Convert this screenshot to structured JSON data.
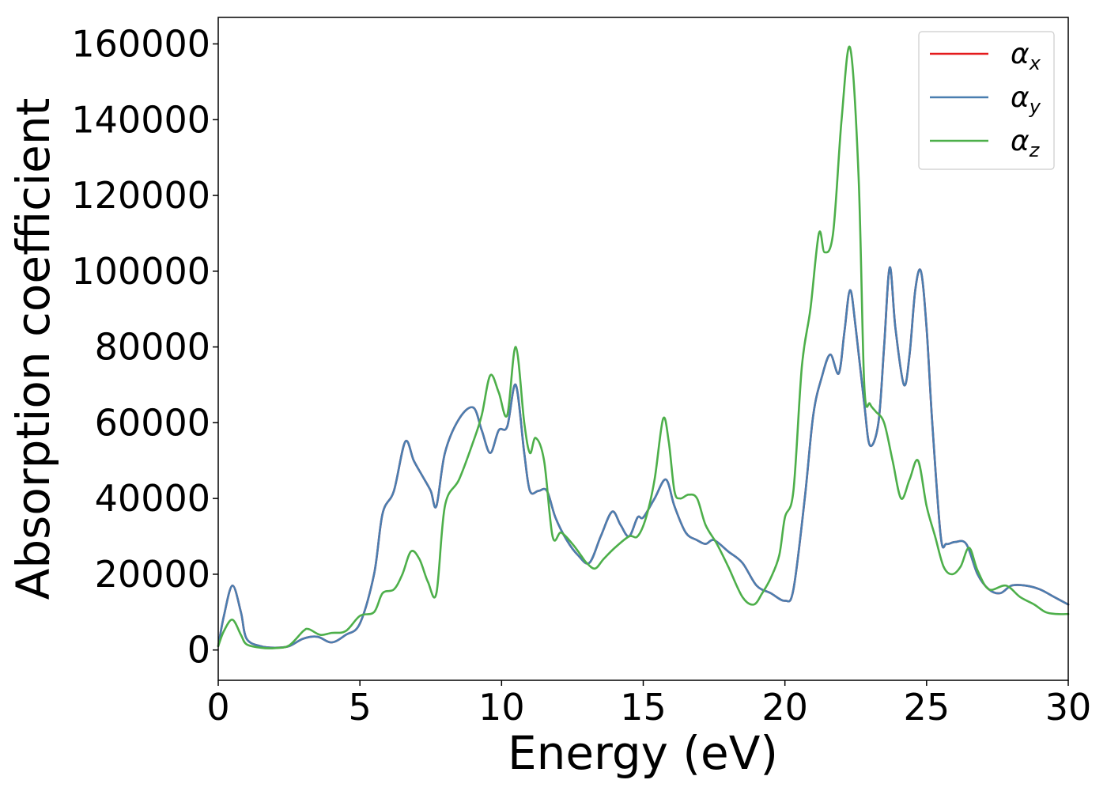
{
  "chart_data": {
    "type": "line",
    "xlabel": "Energy (eV)",
    "ylabel": "Absorption coefficient",
    "xlim": [
      0,
      30
    ],
    "ylim": [
      -8000,
      167000
    ],
    "xticks": [
      0,
      5,
      10,
      15,
      20,
      25,
      30
    ],
    "yticks": [
      0,
      20000,
      40000,
      60000,
      80000,
      100000,
      120000,
      140000,
      160000
    ],
    "grid": false,
    "legend_position": "top-right",
    "series": [
      {
        "name": "α",
        "subscript": "x",
        "color": "#e41a1c",
        "x": [
          0,
          0.2,
          0.5,
          0.8,
          1.0,
          1.5,
          2.0,
          2.5,
          3.0,
          3.5,
          4.0,
          4.5,
          5.0,
          5.5,
          5.8,
          6.2,
          6.6,
          6.9,
          7.2,
          7.5,
          7.7,
          8.0,
          8.5,
          9.0,
          9.3,
          9.6,
          9.9,
          10.2,
          10.5,
          10.8,
          11.0,
          11.3,
          11.6,
          11.9,
          12.3,
          12.7,
          13.1,
          13.5,
          13.9,
          14.2,
          14.5,
          14.8,
          15.0,
          15.4,
          15.8,
          16.1,
          16.5,
          16.9,
          17.2,
          17.5,
          18.0,
          18.5,
          19.0,
          19.5,
          20.0,
          20.3,
          20.7,
          21.0,
          21.3,
          21.6,
          21.9,
          22.1,
          22.3,
          22.5,
          22.8,
          23.0,
          23.3,
          23.5,
          23.7,
          23.9,
          24.2,
          24.4,
          24.6,
          24.8,
          25.0,
          25.2,
          25.5,
          25.7,
          26.0,
          26.4,
          26.8,
          27.2,
          27.6,
          28.0,
          28.5,
          29.0,
          29.5,
          30.0
        ],
        "y": [
          1000,
          9000,
          17000,
          10000,
          3000,
          1000,
          600,
          1000,
          3000,
          3500,
          2000,
          4000,
          7000,
          20000,
          36000,
          42000,
          55000,
          50000,
          46000,
          42000,
          38000,
          52000,
          61000,
          64000,
          58000,
          52000,
          58000,
          59000,
          70000,
          52000,
          42000,
          42000,
          42000,
          35000,
          29000,
          25000,
          23000,
          30000,
          36500,
          33000,
          30000,
          35000,
          35000,
          40000,
          45000,
          38000,
          31000,
          29000,
          28000,
          29000,
          26000,
          23000,
          17000,
          15000,
          13000,
          16000,
          40000,
          62000,
          72000,
          78000,
          73000,
          84000,
          95000,
          85000,
          65000,
          54000,
          60000,
          80000,
          101000,
          85000,
          70000,
          78000,
          95000,
          100000,
          85000,
          60000,
          30000,
          28000,
          28500,
          28000,
          20000,
          16000,
          15000,
          17000,
          17000,
          16000,
          14000,
          12000
        ]
      },
      {
        "name": "α",
        "subscript": "y",
        "color": "#4a7eb0",
        "x": [
          0,
          0.2,
          0.5,
          0.8,
          1.0,
          1.5,
          2.0,
          2.5,
          3.0,
          3.5,
          4.0,
          4.5,
          5.0,
          5.5,
          5.8,
          6.2,
          6.6,
          6.9,
          7.2,
          7.5,
          7.7,
          8.0,
          8.5,
          9.0,
          9.3,
          9.6,
          9.9,
          10.2,
          10.5,
          10.8,
          11.0,
          11.3,
          11.6,
          11.9,
          12.3,
          12.7,
          13.1,
          13.5,
          13.9,
          14.2,
          14.5,
          14.8,
          15.0,
          15.4,
          15.8,
          16.1,
          16.5,
          16.9,
          17.2,
          17.5,
          18.0,
          18.5,
          19.0,
          19.5,
          20.0,
          20.3,
          20.7,
          21.0,
          21.3,
          21.6,
          21.9,
          22.1,
          22.3,
          22.5,
          22.8,
          23.0,
          23.3,
          23.5,
          23.7,
          23.9,
          24.2,
          24.4,
          24.6,
          24.8,
          25.0,
          25.2,
          25.5,
          25.7,
          26.0,
          26.4,
          26.8,
          27.2,
          27.6,
          28.0,
          28.5,
          29.0,
          29.5,
          30.0
        ],
        "y": [
          1000,
          9000,
          17000,
          10000,
          3000,
          1000,
          600,
          1000,
          3000,
          3500,
          2000,
          4000,
          7000,
          20000,
          36000,
          42000,
          55000,
          50000,
          46000,
          42000,
          38000,
          52000,
          61000,
          64000,
          58000,
          52000,
          58000,
          59000,
          70000,
          52000,
          42000,
          42000,
          42000,
          35000,
          29000,
          25000,
          23000,
          30000,
          36500,
          33000,
          30000,
          35000,
          35000,
          40000,
          45000,
          38000,
          31000,
          29000,
          28000,
          29000,
          26000,
          23000,
          17000,
          15000,
          13000,
          16000,
          40000,
          62000,
          72000,
          78000,
          73000,
          84000,
          95000,
          85000,
          65000,
          54000,
          60000,
          80000,
          101000,
          85000,
          70000,
          78000,
          95000,
          100000,
          85000,
          60000,
          30000,
          28000,
          28500,
          28000,
          20000,
          16000,
          15000,
          17000,
          17000,
          16000,
          14000,
          12000
        ]
      },
      {
        "name": "α",
        "subscript": "z",
        "color": "#4daf4a",
        "x": [
          0,
          0.2,
          0.5,
          0.8,
          1.0,
          1.5,
          2.0,
          2.5,
          3.0,
          3.2,
          3.6,
          4.0,
          4.5,
          5.0,
          5.5,
          5.8,
          6.2,
          6.5,
          6.8,
          7.1,
          7.4,
          7.7,
          8.0,
          8.5,
          9.0,
          9.3,
          9.6,
          9.9,
          10.2,
          10.5,
          10.8,
          11.0,
          11.2,
          11.5,
          11.8,
          12.1,
          12.5,
          12.8,
          13.0,
          13.3,
          13.6,
          14.0,
          14.5,
          14.8,
          15.1,
          15.4,
          15.7,
          15.9,
          16.1,
          16.3,
          16.6,
          16.9,
          17.2,
          17.6,
          18.0,
          18.5,
          18.9,
          19.2,
          19.5,
          19.8,
          20.0,
          20.3,
          20.6,
          20.9,
          21.2,
          21.4,
          21.7,
          22.0,
          22.3,
          22.6,
          22.8,
          23.0,
          23.2,
          23.5,
          23.8,
          24.1,
          24.4,
          24.7,
          25.0,
          25.3,
          25.6,
          25.9,
          26.2,
          26.5,
          26.8,
          27.2,
          27.8,
          28.3,
          28.8,
          29.2,
          29.6,
          30.0
        ],
        "y": [
          1000,
          5000,
          8000,
          4000,
          1500,
          600,
          500,
          1200,
          5000,
          5500,
          4000,
          4500,
          5000,
          9000,
          10000,
          15000,
          16000,
          20000,
          26000,
          24000,
          18000,
          15000,
          38000,
          45000,
          55000,
          62000,
          72500,
          68000,
          62000,
          80000,
          60000,
          52000,
          56000,
          50000,
          30000,
          31000,
          28000,
          25000,
          23000,
          21500,
          24000,
          27000,
          30000,
          30000,
          35000,
          45000,
          61000,
          55000,
          42000,
          40000,
          41000,
          40000,
          33000,
          28000,
          22000,
          14000,
          12000,
          15000,
          19000,
          25000,
          35000,
          42000,
          75000,
          90000,
          110000,
          105000,
          110000,
          140000,
          159000,
          125000,
          70000,
          65000,
          63000,
          60000,
          50000,
          40000,
          45000,
          50000,
          38000,
          30000,
          22000,
          20000,
          22000,
          27000,
          21000,
          16000,
          17000,
          14000,
          12000,
          10000,
          9500,
          9500
        ]
      }
    ]
  }
}
